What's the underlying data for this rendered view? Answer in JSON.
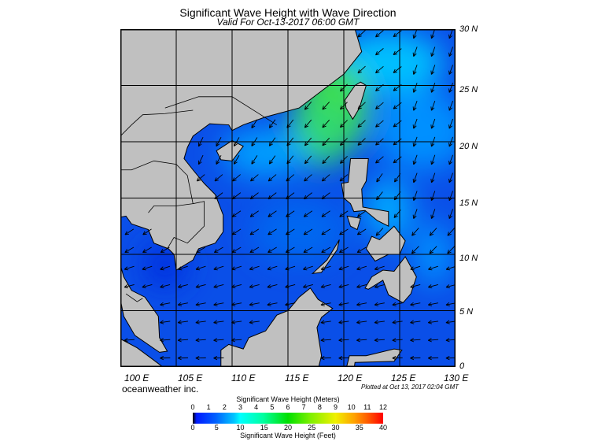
{
  "title": "Significant Wave Height with Wave Direction",
  "subtitle": "Valid For Oct-13-2017 06:00 GMT",
  "map": {
    "lon_range": [
      100,
      130
    ],
    "lat_range": [
      0,
      30
    ],
    "land_color": "#c0c0c0",
    "ocean_color": "#0a4fe8",
    "lat_labels": [
      "30 N",
      "25 N",
      "20 N",
      "15 N",
      "10 N",
      "5 N",
      "0"
    ],
    "lon_labels": [
      "100 E",
      "105 E",
      "110 E",
      "115 E",
      "120 E",
      "125 E",
      "130 E"
    ]
  },
  "brand": "oceanweather inc.",
  "plotted": "Plotted at Oct 13, 2017 02:04 GMT",
  "colorbar": {
    "title_top": "Significant Wave Height (Meters)",
    "title_bottom": "Significant Wave Height (Feet)",
    "meters": [
      "0",
      "1",
      "2",
      "3",
      "4",
      "5",
      "6",
      "7",
      "8",
      "9",
      "10",
      "11",
      "12"
    ],
    "feet": [
      "0",
      "5",
      "10",
      "15",
      "20",
      "25",
      "30",
      "35",
      "40"
    ],
    "colors": [
      "#000000",
      "#0000ff",
      "#00ffff",
      "#00e000",
      "#ffff00",
      "#ff8000",
      "#ff0000"
    ]
  }
}
